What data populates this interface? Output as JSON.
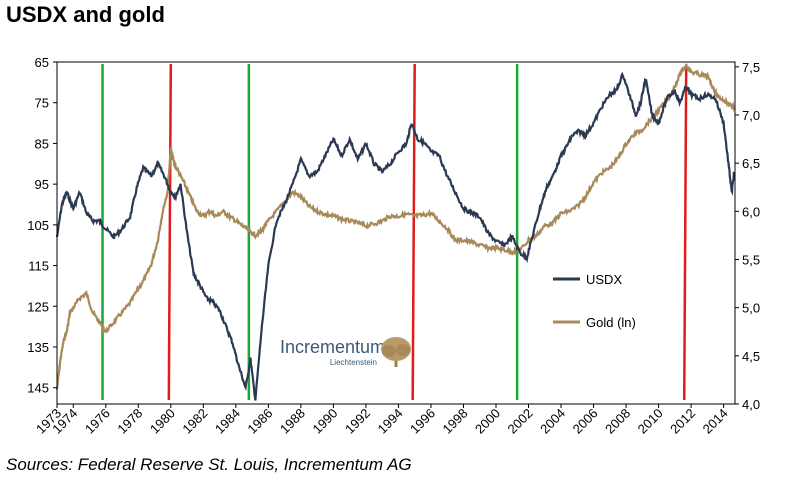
{
  "title": "USDX and gold",
  "source": "Sources: Federal Reserve St. Louis, Incrementum AG",
  "logo": {
    "name": "Incrementum",
    "sub": "Liechtenstein"
  },
  "colors": {
    "usdx": "#2b3a52",
    "gold": "#a88a5a",
    "green": "#1aa832",
    "red": "#e01b1b"
  },
  "chart_data": {
    "type": "line",
    "xlabel": "",
    "x_ticks": [
      1973,
      1974,
      1976,
      1978,
      1980,
      1982,
      1984,
      1986,
      1988,
      1990,
      1992,
      1994,
      1996,
      1998,
      2000,
      2002,
      2004,
      2006,
      2008,
      2010,
      2012,
      2014
    ],
    "xlim": [
      1973,
      2014.7
    ],
    "y_left": {
      "label": "",
      "ticks": [
        65,
        75,
        85,
        95,
        105,
        115,
        125,
        135,
        145
      ],
      "range": [
        65,
        149
      ],
      "inverted": true
    },
    "y_right": {
      "label": "",
      "ticks": [
        "4,0",
        "4,5",
        "5,0",
        "5,5",
        "6,0",
        "6,5",
        "7,0",
        "7,5"
      ],
      "range": [
        4.0,
        7.55
      ]
    },
    "legend": {
      "placement": "center-right",
      "entries": [
        "USDX",
        "Gold (ln)"
      ]
    },
    "grid": false,
    "series": [
      {
        "name": "USDX",
        "axis": "left",
        "points": [
          [
            1973.0,
            108
          ],
          [
            1973.3,
            100
          ],
          [
            1973.6,
            97
          ],
          [
            1974.0,
            101
          ],
          [
            1974.4,
            97
          ],
          [
            1974.8,
            102
          ],
          [
            1975.2,
            104
          ],
          [
            1975.6,
            104
          ],
          [
            1976.0,
            106
          ],
          [
            1976.5,
            108
          ],
          [
            1977.0,
            106
          ],
          [
            1977.5,
            103
          ],
          [
            1977.9,
            96
          ],
          [
            1978.3,
            91
          ],
          [
            1978.8,
            93
          ],
          [
            1979.2,
            90
          ],
          [
            1979.6,
            93
          ],
          [
            1980.0,
            97
          ],
          [
            1980.3,
            98
          ],
          [
            1980.6,
            95
          ],
          [
            1981.0,
            107
          ],
          [
            1981.4,
            117
          ],
          [
            1981.8,
            120
          ],
          [
            1982.2,
            123
          ],
          [
            1982.6,
            124
          ],
          [
            1983.0,
            126
          ],
          [
            1983.4,
            130
          ],
          [
            1983.8,
            134
          ],
          [
            1984.2,
            140
          ],
          [
            1984.6,
            145
          ],
          [
            1984.9,
            138
          ],
          [
            1985.2,
            148
          ],
          [
            1985.6,
            130
          ],
          [
            1986.0,
            115
          ],
          [
            1986.5,
            104
          ],
          [
            1987.0,
            100
          ],
          [
            1987.5,
            95
          ],
          [
            1988.0,
            89
          ],
          [
            1988.5,
            93
          ],
          [
            1989.0,
            92
          ],
          [
            1989.5,
            88
          ],
          [
            1990.0,
            84
          ],
          [
            1990.5,
            88
          ],
          [
            1991.0,
            84
          ],
          [
            1991.5,
            89
          ],
          [
            1992.0,
            85
          ],
          [
            1992.5,
            90
          ],
          [
            1993.0,
            92
          ],
          [
            1993.5,
            90
          ],
          [
            1994.0,
            87
          ],
          [
            1994.5,
            85
          ],
          [
            1994.8,
            80
          ],
          [
            1995.2,
            84
          ],
          [
            1995.6,
            85
          ],
          [
            1996.0,
            87
          ],
          [
            1996.5,
            88
          ],
          [
            1997.0,
            93
          ],
          [
            1997.5,
            97
          ],
          [
            1998.0,
            101
          ],
          [
            1998.5,
            102
          ],
          [
            1999.0,
            103
          ],
          [
            1999.5,
            107
          ],
          [
            2000.0,
            109
          ],
          [
            2000.5,
            110
          ],
          [
            2001.0,
            108
          ],
          [
            2001.5,
            112
          ],
          [
            2001.9,
            113
          ],
          [
            2002.3,
            107
          ],
          [
            2002.7,
            101
          ],
          [
            2003.1,
            96
          ],
          [
            2003.5,
            93
          ],
          [
            2003.9,
            89
          ],
          [
            2004.3,
            86
          ],
          [
            2004.7,
            83
          ],
          [
            2005.1,
            82
          ],
          [
            2005.5,
            83
          ],
          [
            2006.0,
            80
          ],
          [
            2006.5,
            76
          ],
          [
            2007.0,
            73
          ],
          [
            2007.4,
            72
          ],
          [
            2007.8,
            68
          ],
          [
            2008.2,
            73
          ],
          [
            2008.6,
            78
          ],
          [
            2008.9,
            75
          ],
          [
            2009.2,
            69
          ],
          [
            2009.6,
            78
          ],
          [
            2010.0,
            80
          ],
          [
            2010.5,
            74
          ],
          [
            2011.0,
            72
          ],
          [
            2011.3,
            75
          ],
          [
            2011.7,
            71
          ],
          [
            2012.0,
            73
          ],
          [
            2012.5,
            74
          ],
          [
            2013.0,
            73
          ],
          [
            2013.5,
            74
          ],
          [
            2014.0,
            80
          ],
          [
            2014.3,
            90
          ],
          [
            2014.5,
            97
          ],
          [
            2014.65,
            92
          ]
        ]
      },
      {
        "name": "Gold (ln)",
        "axis": "right",
        "points": [
          [
            1973.0,
            4.15
          ],
          [
            1973.2,
            4.45
          ],
          [
            1973.4,
            4.65
          ],
          [
            1973.6,
            4.75
          ],
          [
            1973.8,
            4.95
          ],
          [
            1974.0,
            5.0
          ],
          [
            1974.4,
            5.1
          ],
          [
            1974.8,
            5.15
          ],
          [
            1975.2,
            4.95
          ],
          [
            1975.6,
            4.85
          ],
          [
            1976.0,
            4.75
          ],
          [
            1976.5,
            4.85
          ],
          [
            1977.0,
            4.95
          ],
          [
            1977.5,
            5.05
          ],
          [
            1978.0,
            5.2
          ],
          [
            1978.4,
            5.3
          ],
          [
            1978.8,
            5.45
          ],
          [
            1979.2,
            5.7
          ],
          [
            1979.5,
            6.0
          ],
          [
            1979.8,
            6.2
          ],
          [
            1980.0,
            6.65
          ],
          [
            1980.2,
            6.5
          ],
          [
            1980.5,
            6.4
          ],
          [
            1980.8,
            6.3
          ],
          [
            1981.2,
            6.15
          ],
          [
            1981.6,
            6.0
          ],
          [
            1982.0,
            5.95
          ],
          [
            1982.4,
            6.0
          ],
          [
            1982.8,
            5.95
          ],
          [
            1983.2,
            6.0
          ],
          [
            1983.6,
            5.95
          ],
          [
            1984.0,
            5.9
          ],
          [
            1984.4,
            5.85
          ],
          [
            1984.8,
            5.8
          ],
          [
            1985.2,
            5.75
          ],
          [
            1985.6,
            5.8
          ],
          [
            1986.0,
            5.9
          ],
          [
            1986.5,
            6.0
          ],
          [
            1987.0,
            6.1
          ],
          [
            1987.5,
            6.2
          ],
          [
            1988.0,
            6.15
          ],
          [
            1988.5,
            6.05
          ],
          [
            1989.0,
            6.0
          ],
          [
            1989.5,
            5.97
          ],
          [
            1990.0,
            5.95
          ],
          [
            1990.5,
            5.92
          ],
          [
            1991.0,
            5.9
          ],
          [
            1991.5,
            5.88
          ],
          [
            1992.0,
            5.85
          ],
          [
            1992.5,
            5.87
          ],
          [
            1993.0,
            5.9
          ],
          [
            1993.5,
            5.95
          ],
          [
            1994.0,
            5.95
          ],
          [
            1994.5,
            5.97
          ],
          [
            1995.0,
            5.95
          ],
          [
            1995.5,
            5.96
          ],
          [
            1996.0,
            5.98
          ],
          [
            1996.5,
            5.9
          ],
          [
            1997.0,
            5.82
          ],
          [
            1997.5,
            5.7
          ],
          [
            1998.0,
            5.7
          ],
          [
            1998.5,
            5.68
          ],
          [
            1999.0,
            5.65
          ],
          [
            1999.5,
            5.62
          ],
          [
            2000.0,
            5.62
          ],
          [
            2000.5,
            5.6
          ],
          [
            2001.0,
            5.58
          ],
          [
            2001.5,
            5.6
          ],
          [
            2002.0,
            5.7
          ],
          [
            2002.5,
            5.75
          ],
          [
            2003.0,
            5.85
          ],
          [
            2003.5,
            5.88
          ],
          [
            2004.0,
            5.98
          ],
          [
            2004.5,
            6.0
          ],
          [
            2005.0,
            6.05
          ],
          [
            2005.5,
            6.15
          ],
          [
            2006.0,
            6.3
          ],
          [
            2006.5,
            6.4
          ],
          [
            2007.0,
            6.45
          ],
          [
            2007.5,
            6.55
          ],
          [
            2008.0,
            6.7
          ],
          [
            2008.5,
            6.8
          ],
          [
            2009.0,
            6.85
          ],
          [
            2009.5,
            6.95
          ],
          [
            2010.0,
            7.05
          ],
          [
            2010.5,
            7.15
          ],
          [
            2011.0,
            7.3
          ],
          [
            2011.4,
            7.45
          ],
          [
            2011.7,
            7.52
          ],
          [
            2012.0,
            7.45
          ],
          [
            2012.5,
            7.42
          ],
          [
            2013.0,
            7.4
          ],
          [
            2013.3,
            7.3
          ],
          [
            2013.6,
            7.2
          ],
          [
            2014.0,
            7.15
          ],
          [
            2014.3,
            7.12
          ],
          [
            2014.65,
            7.08
          ]
        ]
      }
    ],
    "vertical_lines": [
      {
        "x": 1975.8,
        "color": "green"
      },
      {
        "x": 1980.0,
        "color": "red"
      },
      {
        "x": 1984.8,
        "color": "green"
      },
      {
        "x": 1995.0,
        "color": "red"
      },
      {
        "x": 2001.3,
        "color": "green"
      },
      {
        "x": 2011.7,
        "color": "red"
      }
    ]
  }
}
